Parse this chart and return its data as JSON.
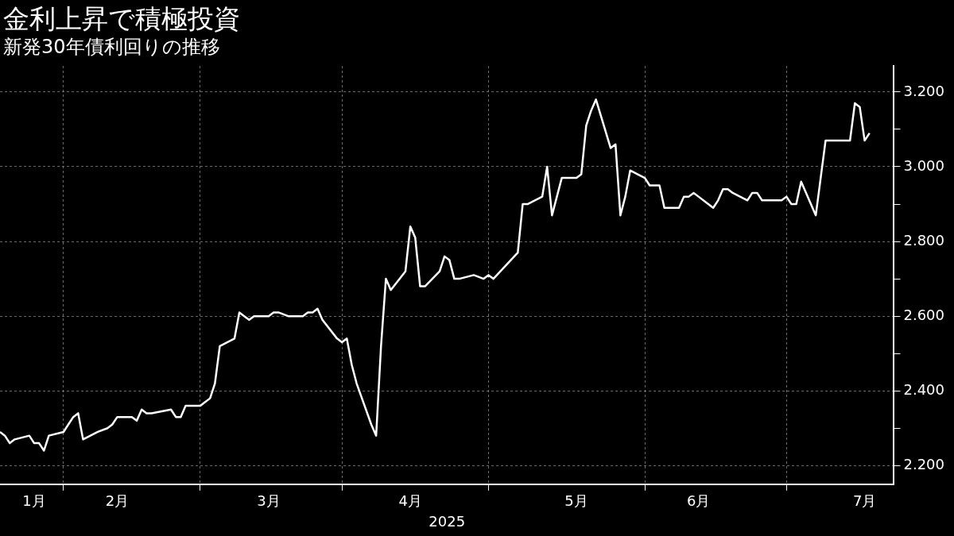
{
  "chart_data": {
    "type": "line",
    "title": "金利上昇で積極投資",
    "subtitle": "新発30年債利回りの推移",
    "xlabel": "2025",
    "x": [
      "2025-01-21",
      "2025-01-22",
      "2025-01-23",
      "2025-01-24",
      "2025-01-27",
      "2025-01-28",
      "2025-01-29",
      "2025-01-30",
      "2025-01-31",
      "2025-02-03",
      "2025-02-04",
      "2025-02-05",
      "2025-02-06",
      "2025-02-07",
      "2025-02-10",
      "2025-02-12",
      "2025-02-13",
      "2025-02-14",
      "2025-02-17",
      "2025-02-18",
      "2025-02-19",
      "2025-02-20",
      "2025-02-21",
      "2025-02-25",
      "2025-02-26",
      "2025-02-27",
      "2025-02-28",
      "2025-03-03",
      "2025-03-04",
      "2025-03-05",
      "2025-03-06",
      "2025-03-07",
      "2025-03-10",
      "2025-03-11",
      "2025-03-12",
      "2025-03-13",
      "2025-03-14",
      "2025-03-17",
      "2025-03-18",
      "2025-03-19",
      "2025-03-21",
      "2025-03-24",
      "2025-03-25",
      "2025-03-26",
      "2025-03-27",
      "2025-03-28",
      "2025-03-31",
      "2025-04-01",
      "2025-04-02",
      "2025-04-03",
      "2025-04-04",
      "2025-04-07",
      "2025-04-08",
      "2025-04-09",
      "2025-04-10",
      "2025-04-11",
      "2025-04-14",
      "2025-04-15",
      "2025-04-16",
      "2025-04-17",
      "2025-04-18",
      "2025-04-21",
      "2025-04-22",
      "2025-04-23",
      "2025-04-24",
      "2025-04-25",
      "2025-04-28",
      "2025-04-30",
      "2025-05-01",
      "2025-05-02",
      "2025-05-07",
      "2025-05-08",
      "2025-05-09",
      "2025-05-12",
      "2025-05-13",
      "2025-05-14",
      "2025-05-15",
      "2025-05-16",
      "2025-05-19",
      "2025-05-20",
      "2025-05-21",
      "2025-05-22",
      "2025-05-23",
      "2025-05-26",
      "2025-05-27",
      "2025-05-28",
      "2025-05-29",
      "2025-05-30",
      "2025-06-02",
      "2025-06-03",
      "2025-06-04",
      "2025-06-05",
      "2025-06-06",
      "2025-06-09",
      "2025-06-10",
      "2025-06-11",
      "2025-06-12",
      "2025-06-13",
      "2025-06-16",
      "2025-06-17",
      "2025-06-18",
      "2025-06-19",
      "2025-06-20",
      "2025-06-23",
      "2025-06-24",
      "2025-06-25",
      "2025-06-26",
      "2025-06-27",
      "2025-06-30",
      "2025-07-01",
      "2025-07-02",
      "2025-07-03",
      "2025-07-04",
      "2025-07-07",
      "2025-07-08",
      "2025-07-09",
      "2025-07-10",
      "2025-07-11",
      "2025-07-14",
      "2025-07-15",
      "2025-07-16",
      "2025-07-17",
      "2025-07-18"
    ],
    "series": [
      {
        "color": "#ffffff",
        "values": [
          2.29,
          2.28,
          2.26,
          2.27,
          2.28,
          2.26,
          2.26,
          2.24,
          2.28,
          2.29,
          2.31,
          2.33,
          2.34,
          2.27,
          2.29,
          2.3,
          2.31,
          2.33,
          2.33,
          2.32,
          2.35,
          2.34,
          2.34,
          2.35,
          2.33,
          2.33,
          2.36,
          2.36,
          2.37,
          2.38,
          2.42,
          2.52,
          2.54,
          2.61,
          2.6,
          2.59,
          2.6,
          2.6,
          2.61,
          2.61,
          2.6,
          2.6,
          2.61,
          2.61,
          2.62,
          2.59,
          2.54,
          2.53,
          2.54,
          2.47,
          2.42,
          2.31,
          2.28,
          2.52,
          2.7,
          2.67,
          2.72,
          2.84,
          2.81,
          2.68,
          2.68,
          2.72,
          2.76,
          2.75,
          2.7,
          2.7,
          2.71,
          2.7,
          2.71,
          2.7,
          2.77,
          2.9,
          2.9,
          2.92,
          3.0,
          2.87,
          2.92,
          2.97,
          2.97,
          2.98,
          3.11,
          3.15,
          3.18,
          3.05,
          3.06,
          2.87,
          2.92,
          2.99,
          2.97,
          2.95,
          2.95,
          2.95,
          2.89,
          2.89,
          2.92,
          2.92,
          2.93,
          2.92,
          2.89,
          2.91,
          2.94,
          2.94,
          2.93,
          2.91,
          2.93,
          2.93,
          2.91,
          2.91,
          2.91,
          2.92,
          2.9,
          2.9,
          2.96,
          2.87,
          2.97,
          3.07,
          3.07,
          3.07,
          3.07,
          3.17,
          3.16,
          3.07,
          3.09
        ]
      }
    ],
    "xlim": [
      "2025-01-21",
      "2025-07-23"
    ],
    "xticks": [
      {
        "value": "2025-01-28",
        "label": "1月"
      },
      {
        "value": "2025-02-03",
        "label": null
      },
      {
        "value": "2025-02-14",
        "label": "2月"
      },
      {
        "value": "2025-03-03",
        "label": null
      },
      {
        "value": "2025-03-17",
        "label": "3月"
      },
      {
        "value": "2025-04-01",
        "label": null
      },
      {
        "value": "2025-04-15",
        "label": "4月"
      },
      {
        "value": "2025-05-01",
        "label": null
      },
      {
        "value": "2025-05-19",
        "label": "5月"
      },
      {
        "value": "2025-06-02",
        "label": null
      },
      {
        "value": "2025-06-13",
        "label": "6月"
      },
      {
        "value": "2025-07-01",
        "label": null
      },
      {
        "value": "2025-07-17",
        "label": "7月"
      }
    ],
    "ylim": [
      2.15,
      3.27
    ],
    "yticks": [
      {
        "value": 2.2,
        "label": "2.200"
      },
      {
        "value": 2.3,
        "label": null
      },
      {
        "value": 2.4,
        "label": "2.400"
      },
      {
        "value": 2.5,
        "label": null
      },
      {
        "value": 2.6,
        "label": "2.600"
      },
      {
        "value": 2.7,
        "label": null
      },
      {
        "value": 2.8,
        "label": "2.800"
      },
      {
        "value": 2.9,
        "label": null
      },
      {
        "value": 3.0,
        "label": "3.000"
      },
      {
        "value": 3.1,
        "label": null
      },
      {
        "value": 3.2,
        "label": "3.200"
      }
    ],
    "grid": true,
    "line_style": "solid"
  }
}
